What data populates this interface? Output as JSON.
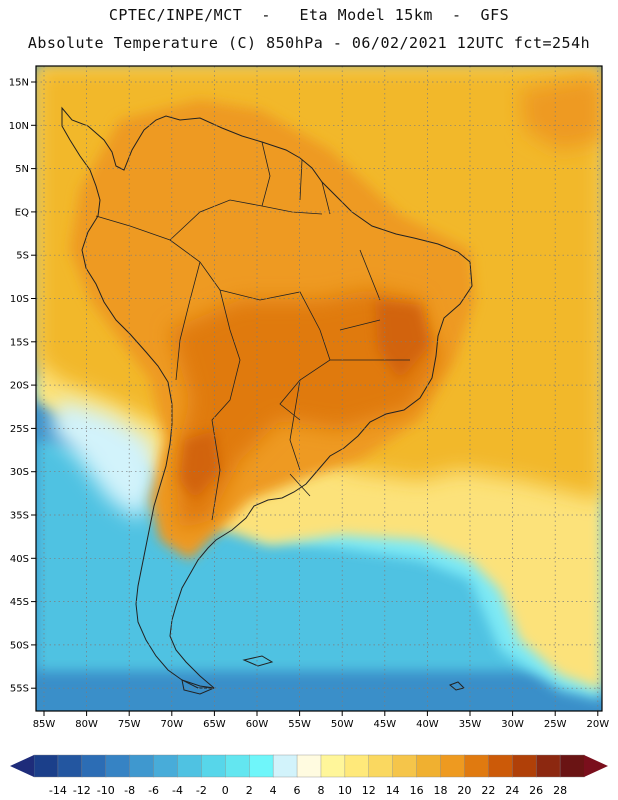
{
  "header": {
    "line1": "CPTEC/INPE/MCT  -   Eta Model 15km  -  GFS",
    "line2": "Absolute Temperature (C) 850hPa - 06/02/2021 12UTC fct=254h"
  },
  "axes": {
    "lat_labels": [
      "15N",
      "10N",
      "5N",
      "EQ",
      "5S",
      "10S",
      "15S",
      "20S",
      "25S",
      "30S",
      "35S",
      "40S",
      "45S",
      "50S",
      "55S"
    ],
    "lon_labels": [
      "85W",
      "80W",
      "75W",
      "70W",
      "65W",
      "60W",
      "55W",
      "50W",
      "45W",
      "40W",
      "35W",
      "30W",
      "25W",
      "20W"
    ]
  },
  "colorbar": {
    "labels": [
      "-14",
      "-12",
      "-10",
      "-8",
      "-6",
      "-4",
      "-2",
      "0",
      "2",
      "4",
      "6",
      "8",
      "10",
      "12",
      "14",
      "16",
      "18",
      "20",
      "22",
      "24",
      "26",
      "28"
    ],
    "colors": [
      "#1b3f8a",
      "#2356a0",
      "#2c6db5",
      "#3683c4",
      "#3f98cf",
      "#48acd9",
      "#4fc2e2",
      "#57d6ea",
      "#63e6f0",
      "#6ff6fa",
      "#d2f3fb",
      "#fffbe0",
      "#fff69a",
      "#ffe97a",
      "#fad860",
      "#f5c54a",
      "#f0b030",
      "#ee9a20",
      "#e07a10",
      "#cc5a08",
      "#b04008",
      "#8c2810",
      "#6a1414"
    ],
    "low_color": "#1e2c7a",
    "high_color": "#7a0f1c"
  },
  "map": {
    "colors": {
      "ocean_cold": "#3a8fc9",
      "ocean_cool": "#4fc2e2",
      "ocean_mild": "#7de9f5",
      "ocean_trans": "#d2f3fb",
      "ocean_warm": "#fce27a",
      "ocean_tropic": "#f2b82a",
      "land_warm": "#ee9a20",
      "land_hot": "#e07a10",
      "land_hotspot": "#d2640c",
      "border": "#222222",
      "grid": "#7c7c7c"
    }
  }
}
